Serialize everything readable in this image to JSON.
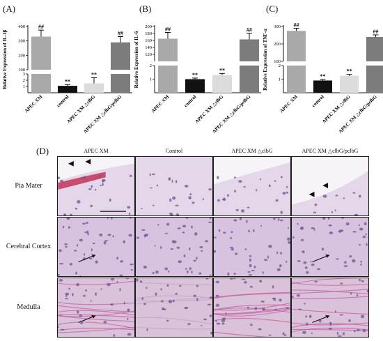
{
  "panels": {
    "a_label": "(A)",
    "b_label": "(B)",
    "c_label": "(C)",
    "d_label": "(D)"
  },
  "chart_data": [
    {
      "type": "bar",
      "ylabel": "Relative Expression of IL-1β",
      "categories": [
        "APEC XM",
        "control",
        "APEC XM △clbG",
        "APEC XM △clbG/pclbG"
      ],
      "values": [
        330,
        1.1,
        1.5,
        290
      ],
      "errors": [
        45,
        0.2,
        0.9,
        40
      ],
      "colors": [
        "#a9a9a9",
        "#111111",
        "#dcdcdc",
        "#7c7c7c"
      ],
      "significance": [
        "##",
        "**",
        "**",
        "##"
      ],
      "axis_break": {
        "lower": [
          0,
          3
        ],
        "upper": [
          100,
          400
        ]
      },
      "lower_ticks": [
        1,
        2,
        3
      ],
      "upper_ticks": [
        100,
        200,
        300,
        400
      ]
    },
    {
      "type": "bar",
      "ylabel": "Relative Expression of IL-6",
      "categories": [
        "APEC XM",
        "control",
        "APEC XM △clbG",
        "APEC XM △clbG/pclbG"
      ],
      "values": [
        165,
        1.0,
        1.3,
        163
      ],
      "errors": [
        18,
        0.08,
        0.12,
        18
      ],
      "colors": [
        "#a9a9a9",
        "#111111",
        "#dcdcdc",
        "#7c7c7c"
      ],
      "significance": [
        "##",
        "**",
        "**",
        "##"
      ],
      "axis_break": {
        "lower": [
          0,
          2
        ],
        "upper": [
          100,
          200
        ]
      },
      "lower_ticks": [
        1,
        2
      ],
      "upper_ticks": [
        120,
        140,
        160,
        180,
        200
      ]
    },
    {
      "type": "bar",
      "ylabel": "Relative Expression of TNF-α",
      "categories": [
        "APEC XM",
        "control",
        "APEC XM △clbG",
        "APEC XM △clbG/pclbG"
      ],
      "values": [
        275,
        0.9,
        1.25,
        240
      ],
      "errors": [
        15,
        0.08,
        0.1,
        12
      ],
      "colors": [
        "#a9a9a9",
        "#111111",
        "#dcdcdc",
        "#7c7c7c"
      ],
      "significance": [
        "##",
        "**",
        "**",
        "##"
      ],
      "axis_break": {
        "lower": [
          0,
          2
        ],
        "upper": [
          100,
          300
        ]
      },
      "lower_ticks": [
        1,
        2
      ],
      "upper_ticks": [
        100,
        200,
        300
      ]
    }
  ],
  "histology": {
    "columns": [
      "APEC XM",
      "Control",
      "APEC XM △clbG",
      "APEC XM △clbG/pclbG"
    ],
    "rows": [
      "Pia Mater",
      "Cerebral Cortex",
      "Medulla"
    ],
    "tissue_colors": {
      "pia_bg": "#e4d7ea",
      "cortex_bg": "#d7c3df",
      "medulla_bg": "#d9c2da",
      "nuclei": "#6a5590",
      "blood": "#c0294d",
      "fiber": "#c25a9c"
    }
  }
}
